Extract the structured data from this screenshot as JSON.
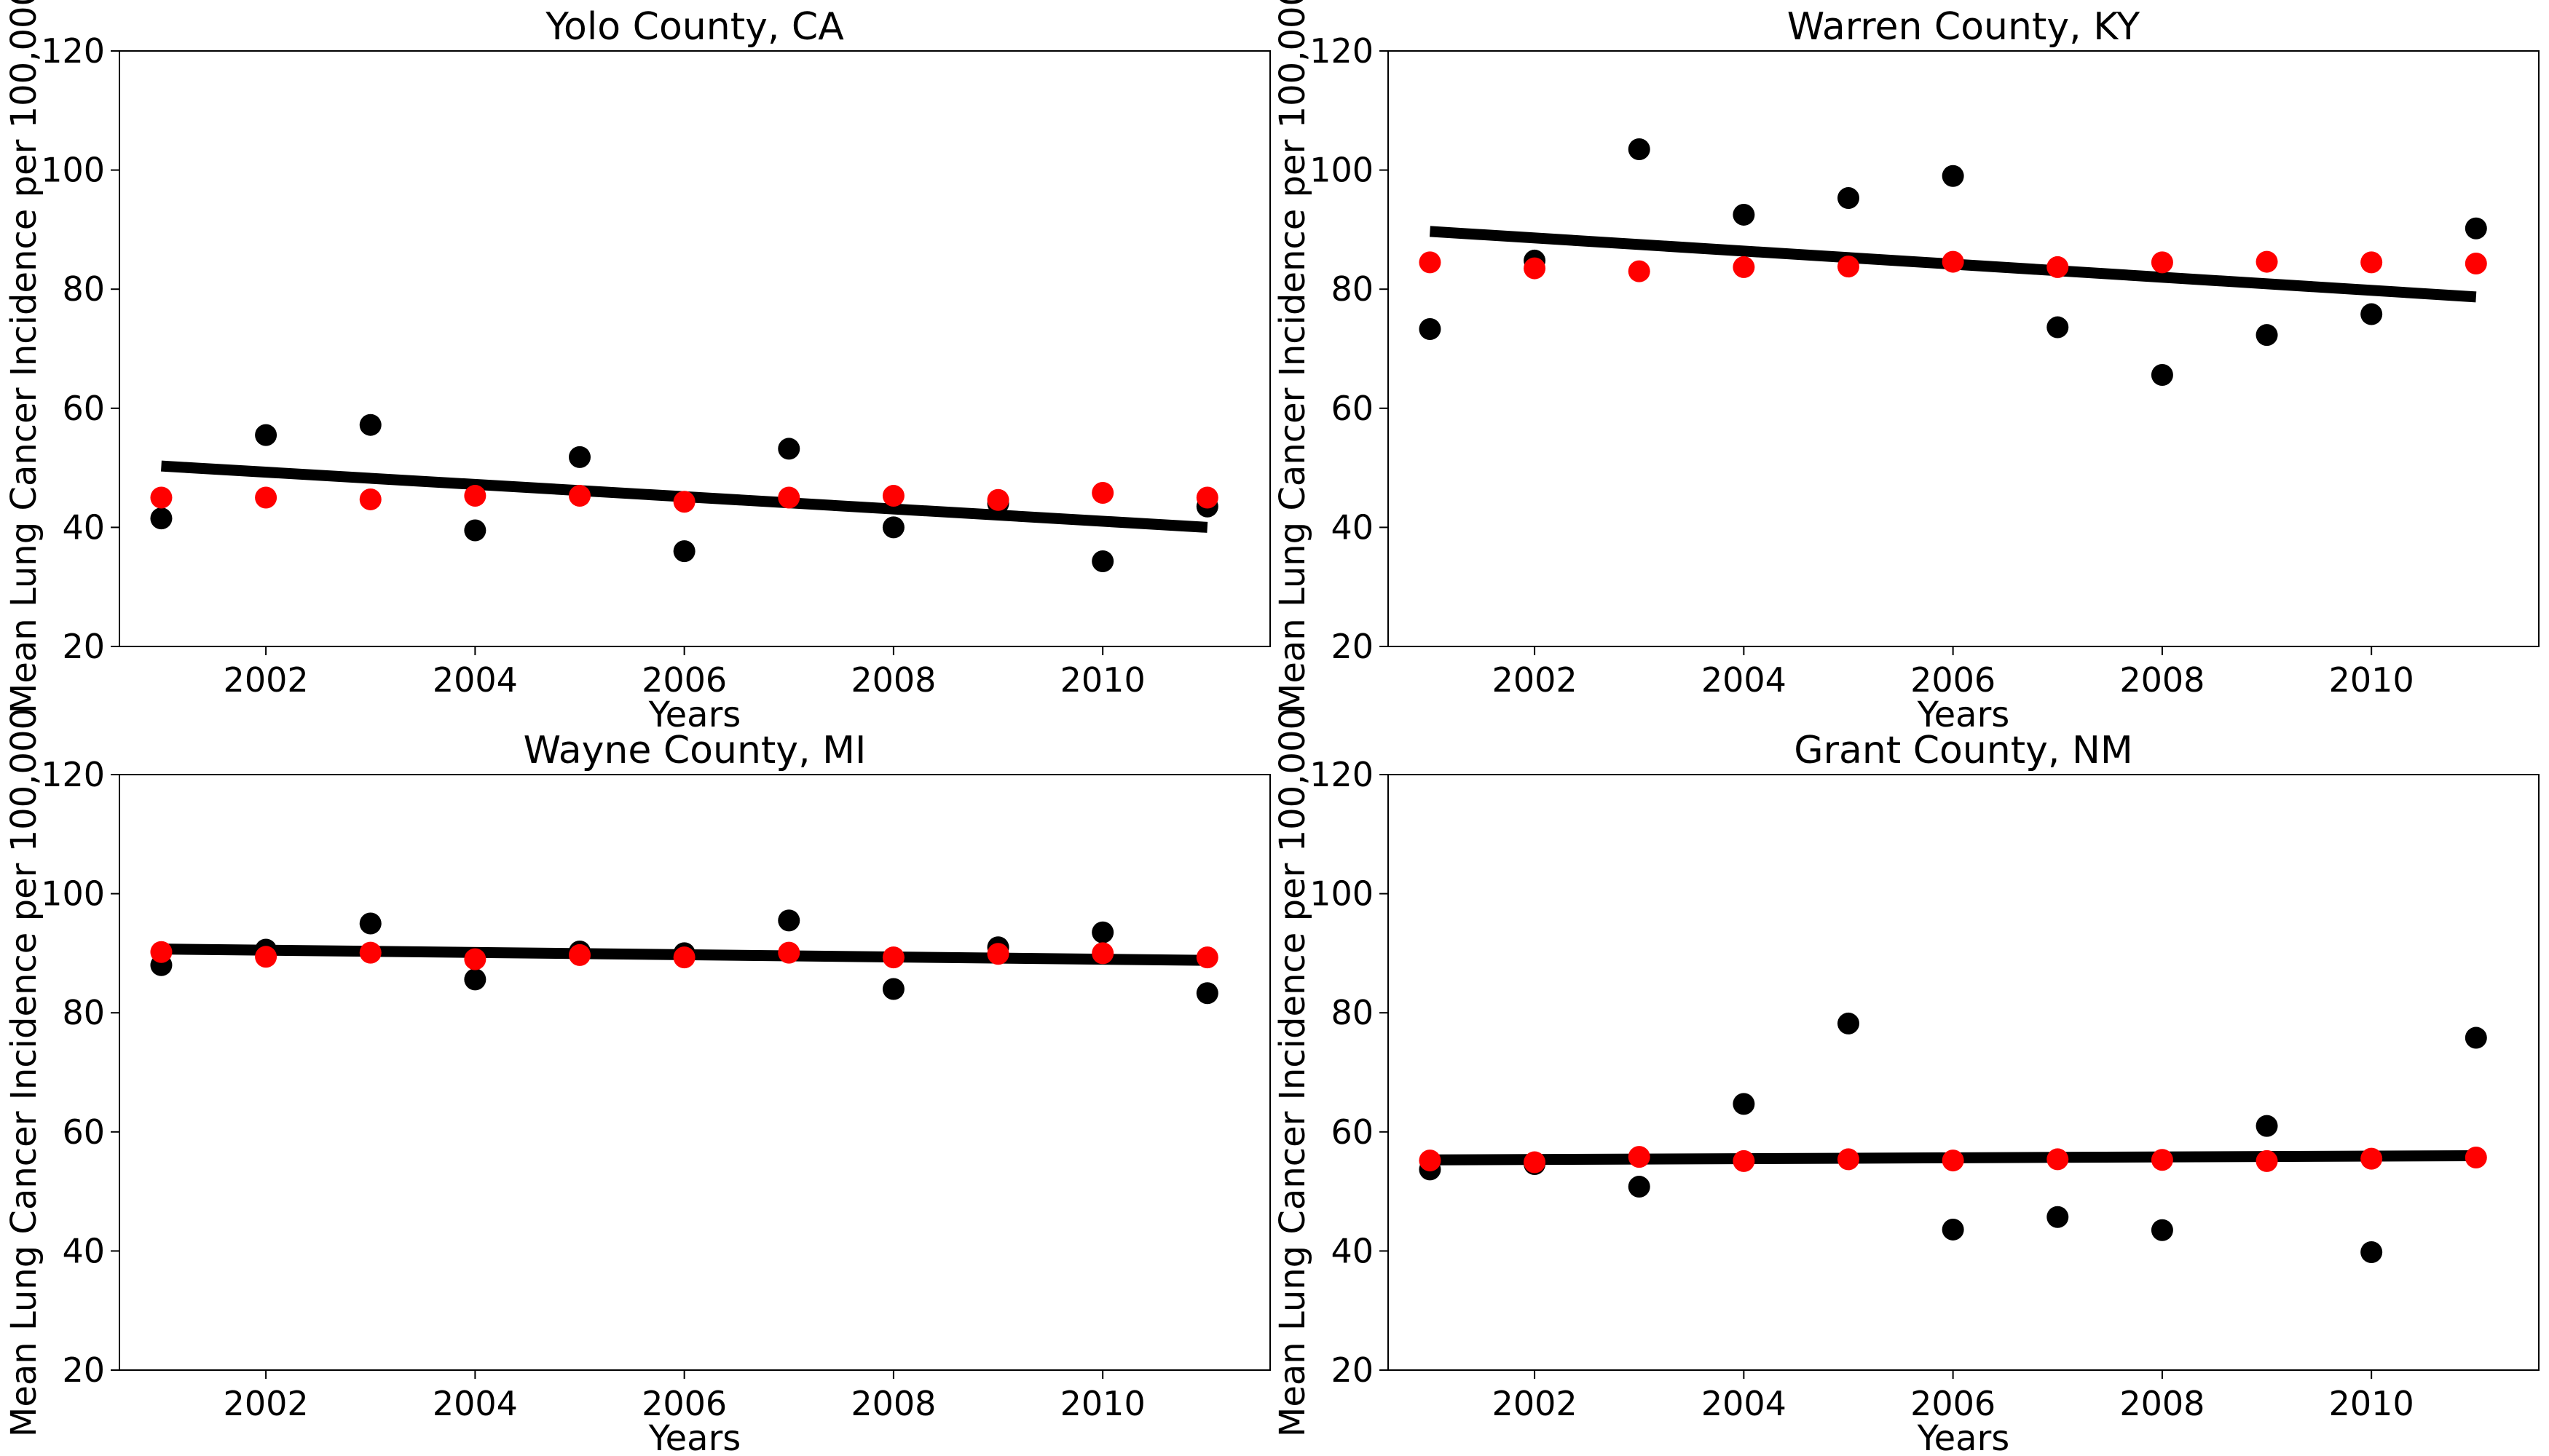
{
  "chart_data": [
    {
      "type": "scatter",
      "title": "Yolo County, CA",
      "xlabel": "Years",
      "ylabel": "Mean Lung Cancer Incidence per 100,000",
      "xlim": [
        2000.6,
        2011.6
      ],
      "ylim": [
        20,
        120
      ],
      "x_ticks": [
        2002,
        2004,
        2006,
        2008,
        2010
      ],
      "y_ticks": [
        20,
        40,
        60,
        80,
        100,
        120
      ],
      "grid": false,
      "legend": "none",
      "x": [
        2001,
        2002,
        2003,
        2004,
        2005,
        2006,
        2007,
        2008,
        2009,
        2010,
        2011
      ],
      "series": [
        {
          "color": "#000000",
          "kind": "points",
          "values": [
            41.5,
            55.5,
            57.2,
            39.5,
            51.8,
            36.0,
            53.2,
            40.0,
            44.0,
            34.3,
            43.5
          ]
        },
        {
          "color": "#ff0000",
          "kind": "points",
          "values": [
            45.0,
            45.0,
            44.7,
            45.3,
            45.3,
            44.3,
            45.0,
            45.3,
            44.6,
            45.8,
            45.0
          ]
        },
        {
          "color": "#000000",
          "kind": "trend_line",
          "values": [
            50.3,
            40.0
          ],
          "x": [
            2001,
            2011
          ]
        }
      ]
    },
    {
      "type": "scatter",
      "title": "Warren County, KY",
      "xlabel": "Years",
      "ylabel": "Mean Lung Cancer Incidence per 100,000",
      "xlim": [
        2000.6,
        2011.6
      ],
      "ylim": [
        20,
        120
      ],
      "x_ticks": [
        2002,
        2004,
        2006,
        2008,
        2010
      ],
      "y_ticks": [
        20,
        40,
        60,
        80,
        100,
        120
      ],
      "grid": false,
      "legend": "none",
      "x": [
        2001,
        2002,
        2003,
        2004,
        2005,
        2006,
        2007,
        2008,
        2009,
        2010,
        2011
      ],
      "series": [
        {
          "color": "#000000",
          "kind": "points",
          "values": [
            73.3,
            84.8,
            103.5,
            92.5,
            95.3,
            99.0,
            73.6,
            65.6,
            72.3,
            75.8,
            90.2
          ]
        },
        {
          "color": "#ff0000",
          "kind": "points",
          "values": [
            84.5,
            83.5,
            83.0,
            83.7,
            83.8,
            84.6,
            83.7,
            84.5,
            84.6,
            84.5,
            84.3
          ]
        },
        {
          "color": "#000000",
          "kind": "trend_line",
          "values": [
            89.7,
            78.7
          ],
          "x": [
            2001,
            2011
          ]
        }
      ]
    },
    {
      "type": "scatter",
      "title": "Wayne County, MI",
      "xlabel": "Years",
      "ylabel": "Mean Lung Cancer Incidence per 100,000",
      "xlim": [
        2000.6,
        2011.6
      ],
      "ylim": [
        20,
        120
      ],
      "x_ticks": [
        2002,
        2004,
        2006,
        2008,
        2010
      ],
      "y_ticks": [
        20,
        40,
        60,
        80,
        100,
        120
      ],
      "grid": false,
      "legend": "none",
      "x": [
        2001,
        2002,
        2003,
        2004,
        2005,
        2006,
        2007,
        2008,
        2009,
        2010,
        2011
      ],
      "series": [
        {
          "color": "#000000",
          "kind": "points",
          "values": [
            88.0,
            90.6,
            95.0,
            85.6,
            90.3,
            90.0,
            95.5,
            84.0,
            91.0,
            93.5,
            83.3
          ]
        },
        {
          "color": "#ff0000",
          "kind": "points",
          "values": [
            90.2,
            89.4,
            90.1,
            89.0,
            89.7,
            89.3,
            90.1,
            89.3,
            89.9,
            90.0,
            89.3
          ]
        },
        {
          "color": "#000000",
          "kind": "trend_line",
          "values": [
            90.7,
            88.8
          ],
          "x": [
            2001,
            2011
          ]
        }
      ]
    },
    {
      "type": "scatter",
      "title": "Grant County, NM",
      "xlabel": "Years",
      "ylabel": "Mean Lung Cancer Incidence per 100,000",
      "xlim": [
        2000.6,
        2011.6
      ],
      "ylim": [
        20,
        120
      ],
      "x_ticks": [
        2002,
        2004,
        2006,
        2008,
        2010
      ],
      "y_ticks": [
        20,
        40,
        60,
        80,
        100,
        120
      ],
      "grid": false,
      "legend": "none",
      "x": [
        2001,
        2002,
        2003,
        2004,
        2005,
        2006,
        2007,
        2008,
        2009,
        2010,
        2011
      ],
      "series": [
        {
          "color": "#000000",
          "kind": "points",
          "values": [
            53.7,
            54.6,
            50.8,
            64.7,
            78.2,
            43.6,
            45.7,
            43.5,
            61.0,
            39.8,
            75.8
          ]
        },
        {
          "color": "#ff0000",
          "kind": "points",
          "values": [
            55.2,
            54.9,
            55.8,
            55.1,
            55.4,
            55.2,
            55.4,
            55.3,
            55.1,
            55.5,
            55.7
          ]
        },
        {
          "color": "#000000",
          "kind": "trend_line",
          "values": [
            55.3,
            56.0
          ],
          "x": [
            2001,
            2011
          ]
        }
      ]
    }
  ]
}
